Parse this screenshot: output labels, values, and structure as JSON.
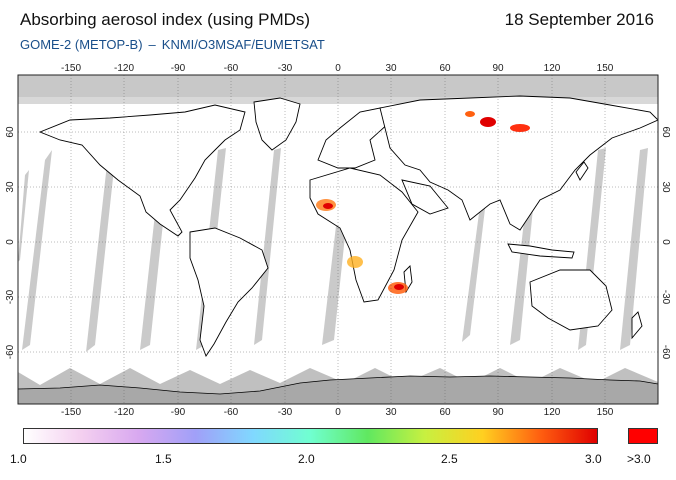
{
  "header": {
    "title": "Absorbing aerosol index (using PMDs)",
    "date": "18 September 2016",
    "instrument": "GOME-2 (METOP-B)",
    "separator": "–",
    "source": "KNMI/O3MSAF/EUMETSAT"
  },
  "map": {
    "lon_ticks": [
      "-150",
      "-120",
      "-90",
      "-60",
      "-30",
      "0",
      "30",
      "60",
      "90",
      "120",
      "150"
    ],
    "lat_ticks": [
      "60",
      "30",
      "0",
      "-30",
      "-60"
    ],
    "lon_range": [
      -180,
      180
    ],
    "lat_range": [
      -90,
      90
    ],
    "colors": {
      "land_outline": "#000000",
      "no_data": "#c8c8c8",
      "polar_no_data": "#a8a8a8",
      "grid": "#666666"
    }
  },
  "colorbar": {
    "min": "1.0",
    "ticks": [
      "1.0",
      "1.5",
      "2.0",
      "2.5",
      "3.0"
    ],
    "over_label": ">3.0",
    "gradient": [
      "#ffffff",
      "#f4d0f0",
      "#d8a8f0",
      "#a0a0f8",
      "#80d8ff",
      "#70ffd0",
      "#60e860",
      "#c8f040",
      "#ffd020",
      "#ff6010",
      "#e00000"
    ],
    "over_color": "#ff0000"
  }
}
